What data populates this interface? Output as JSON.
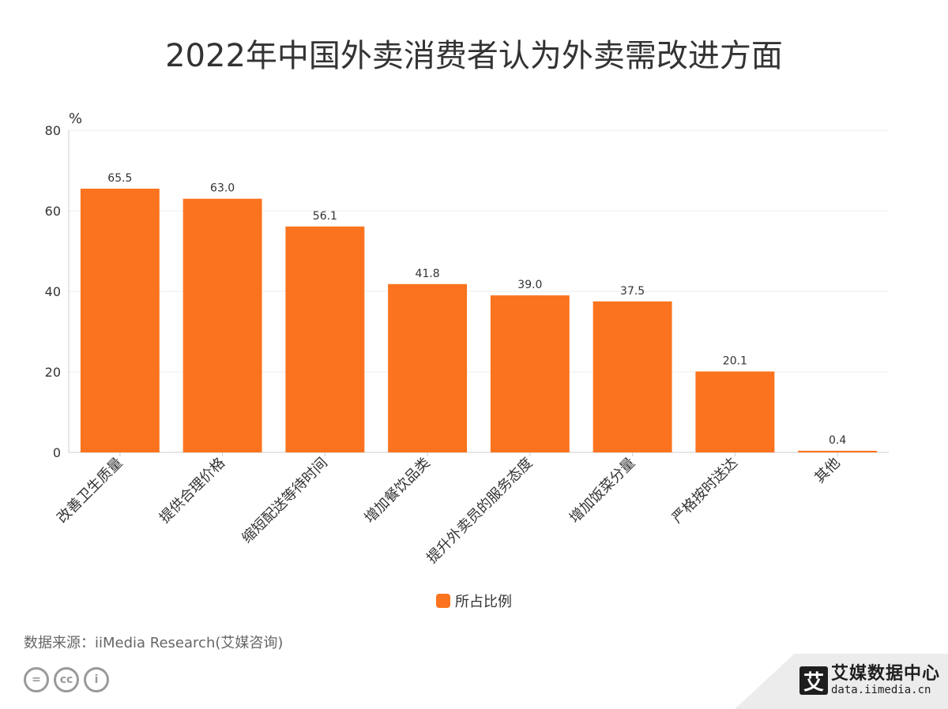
{
  "chart_data": {
    "type": "bar",
    "title": "2022年中国外卖消费者认为外卖需改进方面",
    "categories": [
      "改善卫生质量",
      "提供合理价格",
      "缩短配送等待时间",
      "增加餐饮品类",
      "提升外卖员的服务态度",
      "增加饭菜分量",
      "严格按时送达",
      "其他"
    ],
    "series": [
      {
        "name": "所占比例",
        "values": [
          65.5,
          63.0,
          56.1,
          41.8,
          39.0,
          37.5,
          20.1,
          0.4
        ]
      }
    ],
    "value_labels": [
      "65.5",
      "63.0",
      "56.1",
      "41.8",
      "39.0",
      "37.5",
      "20.1",
      "0.4"
    ],
    "ylabel": "%",
    "ylim": [
      0,
      80
    ],
    "yticks": [
      0,
      20,
      40,
      60,
      80
    ],
    "grid": true,
    "legend_position": "bottom-center"
  },
  "colors": {
    "bar": "#fb731e",
    "grid": "#eeeeee",
    "axis": "#cccccc"
  },
  "footer": {
    "source": "数据来源：iiMedia Research(艾媒咨询)",
    "brand_logo": "艾",
    "brand_name": "艾媒数据中心",
    "brand_url": "data.iimedia.cn",
    "license_icons": [
      "equals-icon",
      "cc-icon",
      "person-icon"
    ],
    "license_glyphs": [
      "=",
      "cc",
      "i"
    ]
  }
}
